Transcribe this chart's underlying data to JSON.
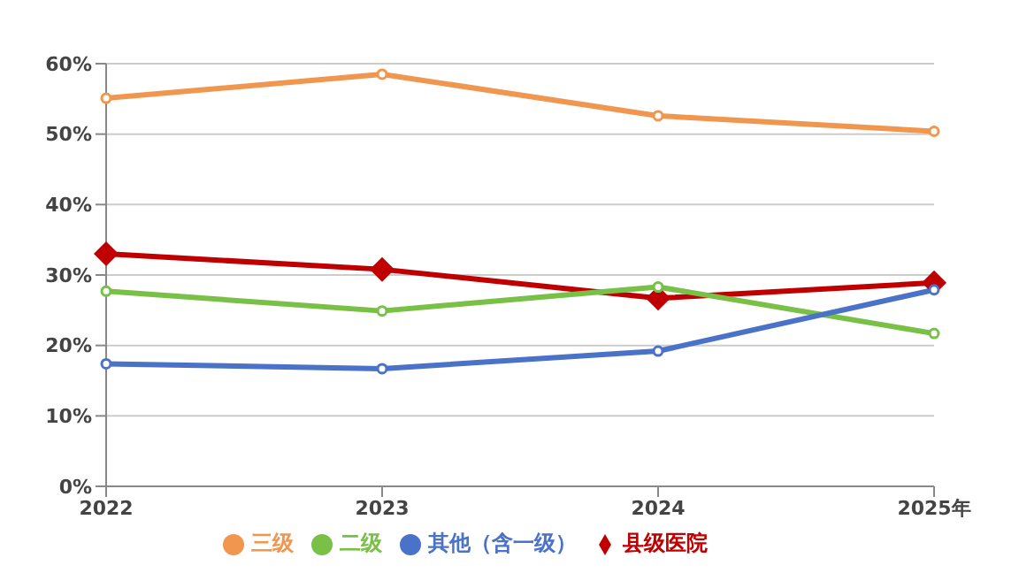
{
  "chart_data": {
    "type": "line",
    "categories": [
      "2022",
      "2023",
      "2024",
      "2025年"
    ],
    "series": [
      {
        "name": "三级",
        "color": "#f0964f",
        "values": [
          55.1,
          58.5,
          52.6,
          50.4
        ],
        "marker": "circle"
      },
      {
        "name": "二级",
        "color": "#78c046",
        "values": [
          27.7,
          24.9,
          28.3,
          21.7
        ],
        "marker": "circle"
      },
      {
        "name": "其他（含一级）",
        "color": "#4a72c8",
        "values": [
          17.4,
          16.7,
          19.2,
          27.9
        ],
        "marker": "circle"
      },
      {
        "name": "县级医院",
        "color": "#c00000",
        "values": [
          33.0,
          30.8,
          26.7,
          28.9
        ],
        "marker": "diamond"
      }
    ],
    "ylim": [
      0,
      60
    ],
    "yticks": [
      {
        "value": 0,
        "label": "0%"
      },
      {
        "value": 10,
        "label": "10%"
      },
      {
        "value": 20,
        "label": "20%"
      },
      {
        "value": 30,
        "label": "30%"
      },
      {
        "value": 40,
        "label": "40%"
      },
      {
        "value": 50,
        "label": "50%"
      },
      {
        "value": 60,
        "label": "60%"
      }
    ],
    "grid": "y",
    "legend": "bottom",
    "line_style": "solid"
  }
}
